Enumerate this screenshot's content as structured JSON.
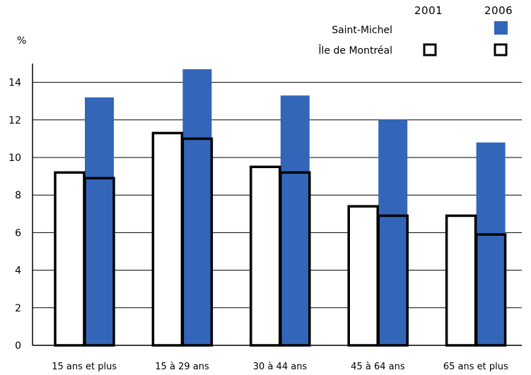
{
  "chart_data": {
    "type": "bar",
    "ylabel": "%",
    "ylim": [
      0,
      15
    ],
    "yticks": [
      0,
      2,
      4,
      6,
      8,
      10,
      12,
      14
    ],
    "grid": true,
    "categories": [
      "15 ans et plus",
      "15 à 29 ans",
      "30 à 44 ans",
      "45 à 64 ans",
      "65 ans et plus"
    ],
    "legend": {
      "placement": "top-right",
      "years": [
        "2001",
        "2006"
      ],
      "rows": [
        "Saint-Michel",
        "Île de Montréal"
      ]
    },
    "series": [
      {
        "name": "Saint-Michel",
        "year": "2006",
        "values": [
          13.2,
          14.7,
          13.3,
          12.0,
          10.8
        ]
      },
      {
        "name": "Île de Montréal",
        "year": "2001",
        "values": [
          9.2,
          11.3,
          9.5,
          7.4,
          6.9
        ]
      },
      {
        "name": "Île de Montréal",
        "year": "2006",
        "values": [
          8.9,
          11.0,
          9.2,
          6.9,
          5.9
        ]
      }
    ],
    "colors": {
      "saint_michel_fill": "#3366b8",
      "outline": "#000000",
      "grid": "#000000"
    }
  }
}
